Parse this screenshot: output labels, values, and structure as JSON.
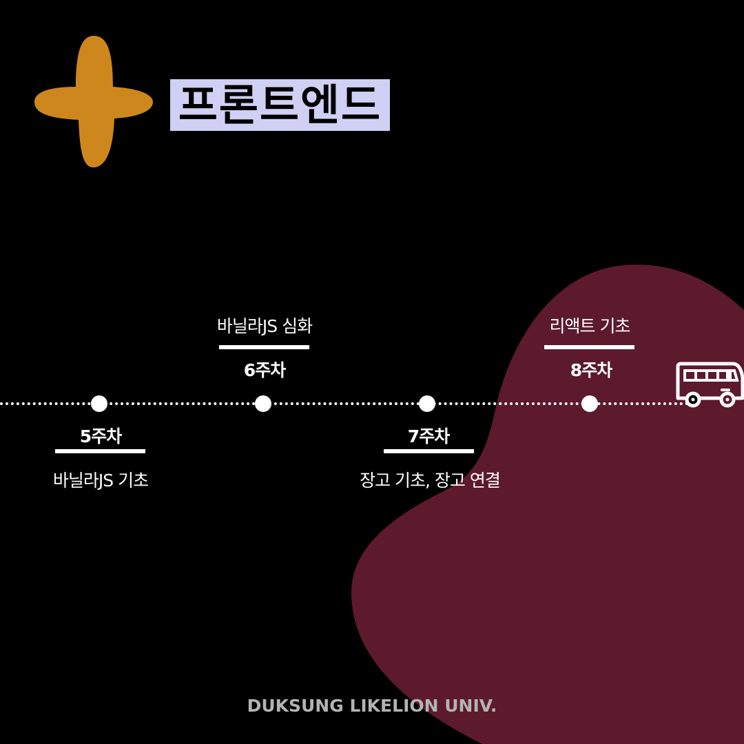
{
  "title": "프론트엔드",
  "colors": {
    "background": "#000000",
    "blob": "#5c1a2c",
    "sparkle": "#cd871c",
    "title_bg": "#cfd0f3"
  },
  "icons": {
    "sparkle": "sparkle-icon",
    "bus": "bus-icon"
  },
  "timeline": {
    "weeks": [
      {
        "week": "5주차",
        "topic": "바닐라JS 기초"
      },
      {
        "week": "6주차",
        "topic": "바닐라JS 심화"
      },
      {
        "week": "7주차",
        "topic": "장고 기초, 장고 연결"
      },
      {
        "week": "8주차",
        "topic": "리액트 기초"
      }
    ]
  },
  "footer": "DUKSUNG LIKELION UNIV."
}
